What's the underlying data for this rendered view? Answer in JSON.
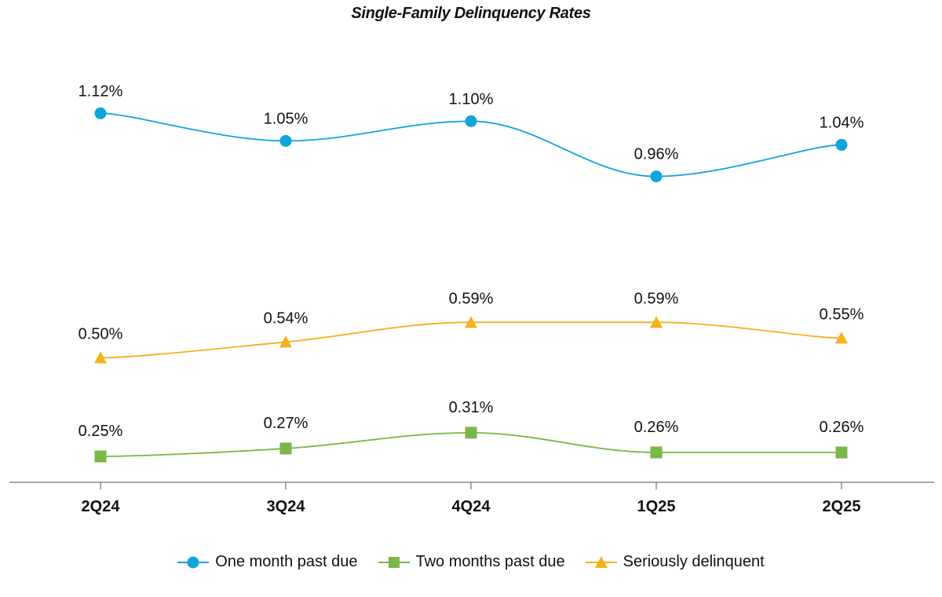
{
  "chart_data": {
    "type": "line",
    "title": "Single-Family Delinquency Rates",
    "categories": [
      "2Q24",
      "3Q24",
      "4Q24",
      "1Q25",
      "2Q25"
    ],
    "xlabel": "",
    "ylabel": "",
    "grid": false,
    "legend_position": "bottom",
    "series": [
      {
        "name": "One month past due",
        "marker": "circle",
        "color": "#0ea5db",
        "values": [
          1.12,
          1.05,
          1.1,
          0.96,
          1.04
        ],
        "labels": [
          "1.12%",
          "1.05%",
          "1.10%",
          "0.96%",
          "1.04%"
        ]
      },
      {
        "name": "Two months past due",
        "marker": "square",
        "color": "#7ab648",
        "values": [
          0.25,
          0.27,
          0.31,
          0.26,
          0.26
        ],
        "labels": [
          "0.25%",
          "0.27%",
          "0.31%",
          "0.26%",
          "0.26%"
        ]
      },
      {
        "name": "Seriously delinquent",
        "marker": "triangle",
        "color": "#f5b01c",
        "values": [
          0.5,
          0.54,
          0.59,
          0.59,
          0.55
        ],
        "labels": [
          "0.50%",
          "0.54%",
          "0.59%",
          "0.59%",
          "0.55%"
        ]
      }
    ]
  }
}
